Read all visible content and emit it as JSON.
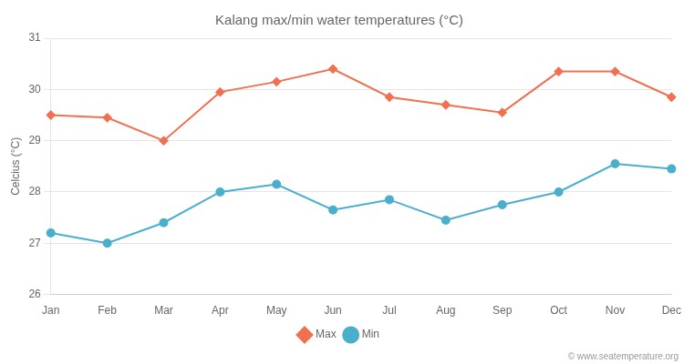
{
  "chart_data": {
    "type": "line",
    "title": "Kalang max/min water temperatures (°C)",
    "ylabel": "Celcius (°C)",
    "categories": [
      "Jan",
      "Feb",
      "Mar",
      "Apr",
      "May",
      "Jun",
      "Jul",
      "Aug",
      "Sep",
      "Oct",
      "Nov",
      "Dec"
    ],
    "series": [
      {
        "name": "Max",
        "color": "#f07050",
        "marker": "diamond",
        "values": [
          29.5,
          29.45,
          29.0,
          29.95,
          30.15,
          30.4,
          29.85,
          29.7,
          29.55,
          30.35,
          30.35,
          29.85
        ]
      },
      {
        "name": "Min",
        "color": "#4aafcc",
        "marker": "circle",
        "values": [
          27.2,
          27.0,
          27.4,
          28.0,
          28.15,
          27.65,
          27.85,
          27.45,
          27.75,
          28.0,
          28.55,
          28.45
        ]
      }
    ],
    "ylim": [
      26,
      31
    ],
    "yticks": [
      26,
      27,
      28,
      29,
      30,
      31
    ],
    "grid": true,
    "legend": "bottom",
    "annotations": [
      "© www.seatemperature.org"
    ]
  }
}
